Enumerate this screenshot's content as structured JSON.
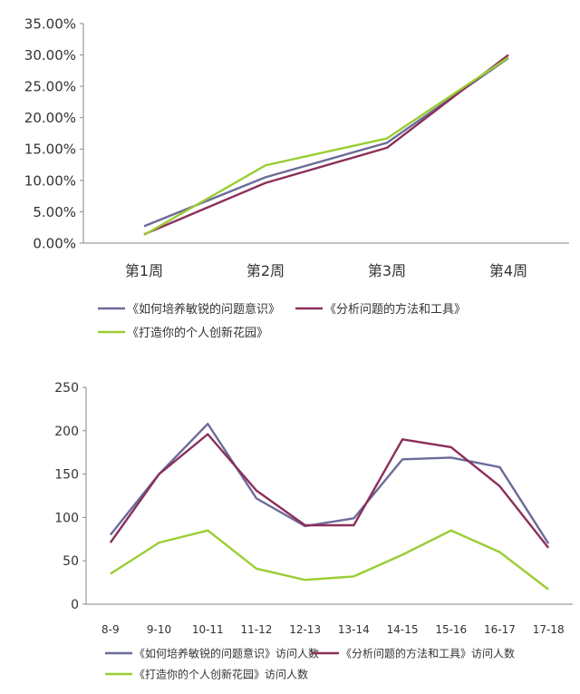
{
  "chart_data": [
    {
      "type": "line",
      "categories": [
        "第1周",
        "第2周",
        "第3周",
        "第4周"
      ],
      "ylim": [
        0,
        0.35
      ],
      "yticks": [
        "0.00%",
        "5.00%",
        "10.00%",
        "15.00%",
        "20.00%",
        "25.00%",
        "30.00%",
        "35.00%"
      ],
      "legend_position": "bottom",
      "grid": false,
      "series": [
        {
          "name": "《如何培养敏锐的问题意识》",
          "color": "#6B6B9A",
          "values": [
            0.027,
            0.105,
            0.16,
            0.295
          ]
        },
        {
          "name": "《分析问题的方法和工具》",
          "color": "#8B2F5A",
          "values": [
            0.014,
            0.096,
            0.152,
            0.3
          ]
        },
        {
          "name": "《打造你的个人创新花园》",
          "color": "#9ACD32",
          "values": [
            0.013,
            0.124,
            0.167,
            0.296
          ]
        }
      ]
    },
    {
      "type": "line",
      "categories": [
        "8-9",
        "9-10",
        "10-11",
        "11-12",
        "12-13",
        "13-14",
        "14-15",
        "15-16",
        "16-17",
        "17-18"
      ],
      "ylim": [
        0,
        250
      ],
      "yticks": [
        "0",
        "50",
        "100",
        "150",
        "200",
        "250"
      ],
      "legend_position": "bottom",
      "grid": false,
      "series": [
        {
          "name": "《如何培养敏锐的问题意识》访问人数",
          "color": "#6B6B9A",
          "values": [
            80,
            150,
            208,
            122,
            90,
            99,
            167,
            169,
            158,
            70
          ]
        },
        {
          "name": "《分析问题的方法和工具》访问人数",
          "color": "#8B2F5A",
          "values": [
            71,
            150,
            196,
            131,
            91,
            91,
            190,
            181,
            136,
            65
          ]
        },
        {
          "name": "《打造你的个人创新花园》访问人数",
          "color": "#9ACD32",
          "values": [
            35,
            71,
            85,
            41,
            28,
            32,
            57,
            85,
            60,
            17
          ]
        }
      ]
    }
  ]
}
